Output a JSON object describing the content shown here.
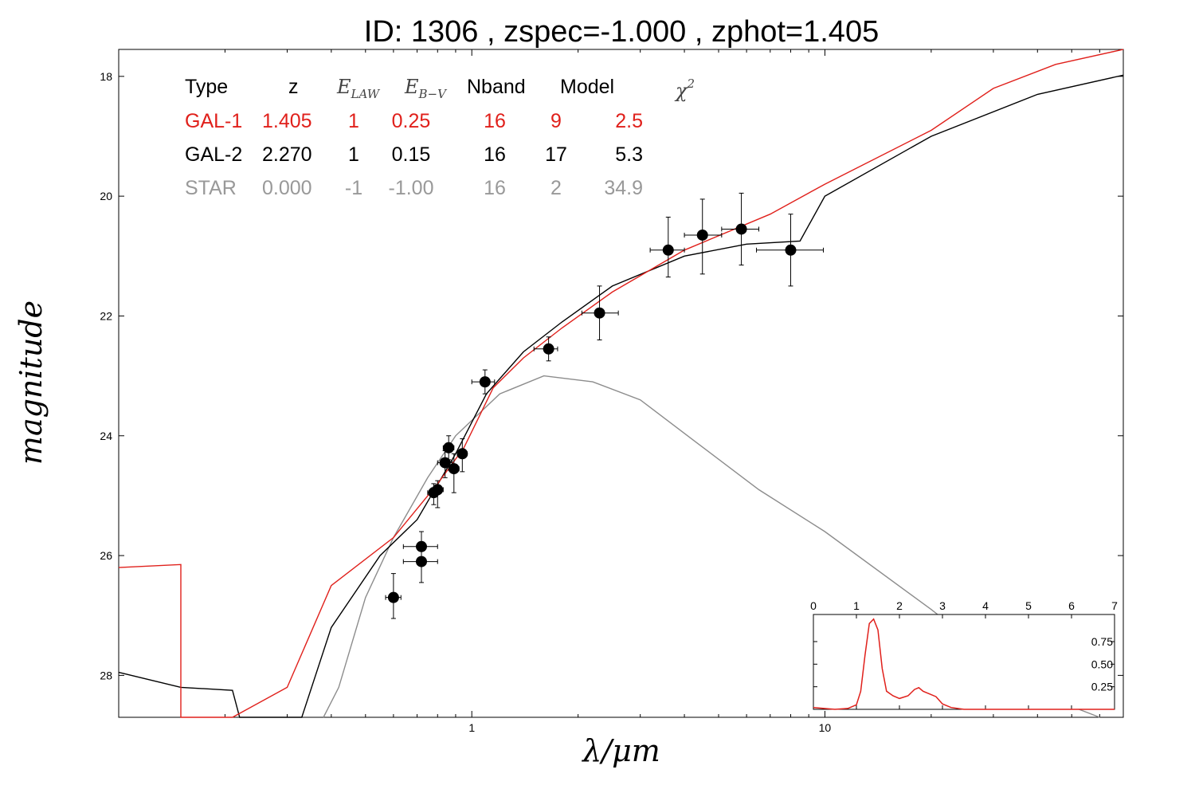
{
  "title": "ID:  1306  , zspec=-1.000 , zphot=1.405",
  "colors": {
    "gal1": "#e0201b",
    "gal2": "#000000",
    "star": "#8c8c8c",
    "points": "#000000"
  },
  "table": {
    "headers": [
      "Type",
      "z",
      "E",
      "LAW",
      "E",
      "B−V",
      "Nband",
      "Model",
      "χ",
      "2"
    ],
    "rows": [
      {
        "color": "#e0201b",
        "cells": [
          "GAL-1",
          "1.405",
          "1",
          "0.25",
          "16",
          "9",
          "2.5"
        ]
      },
      {
        "color": "#000000",
        "cells": [
          "GAL-2",
          "2.270",
          "1",
          "0.15",
          "16",
          "17",
          "5.3"
        ]
      },
      {
        "color": "#999999",
        "cells": [
          "STAR",
          "0.000",
          "-1",
          "-1.00",
          "16",
          "2",
          "34.9"
        ]
      }
    ]
  },
  "chart_data": [
    {
      "type": "line",
      "xlabel": "λ/μm",
      "ylabel": "magnitude",
      "xscale": "log",
      "xlim": [
        0.1,
        70
      ],
      "ylim": [
        28.7,
        17.55
      ],
      "yinverted": true,
      "xticks": [
        1,
        10
      ],
      "xtick_labels": [
        "1",
        "10"
      ],
      "yticks": [
        18,
        20,
        22,
        24,
        26,
        28
      ],
      "ytick_labels": [
        "18",
        "20",
        "22",
        "24",
        "26",
        "28"
      ],
      "series": [
        {
          "key": "gal1",
          "points": [
            [
              0.1,
              26.2
            ],
            [
              0.15,
              26.15
            ],
            [
              0.15,
              28.7
            ],
            [
              0.21,
              28.7
            ],
            [
              0.3,
              28.2
            ],
            [
              0.4,
              26.5
            ],
            [
              0.6,
              25.7
            ],
            [
              0.8,
              24.8
            ],
            [
              0.95,
              24.2
            ],
            [
              1.15,
              23.2
            ],
            [
              1.4,
              22.7
            ],
            [
              1.8,
              22.2
            ],
            [
              2.5,
              21.6
            ],
            [
              4,
              20.9
            ],
            [
              7,
              20.3
            ],
            [
              10,
              19.8
            ],
            [
              20,
              18.9
            ],
            [
              30,
              18.2
            ],
            [
              45,
              17.8
            ],
            [
              70,
              17.55
            ]
          ]
        },
        {
          "key": "gal2",
          "points": [
            [
              0.1,
              27.95
            ],
            [
              0.15,
              28.2
            ],
            [
              0.21,
              28.25
            ],
            [
              0.22,
              28.7
            ],
            [
              0.33,
              28.7
            ],
            [
              0.4,
              27.2
            ],
            [
              0.55,
              26.0
            ],
            [
              0.7,
              25.4
            ],
            [
              0.9,
              24.3
            ],
            [
              1.1,
              23.3
            ],
            [
              1.4,
              22.6
            ],
            [
              1.8,
              22.1
            ],
            [
              2.5,
              21.5
            ],
            [
              4,
              21.0
            ],
            [
              6,
              20.8
            ],
            [
              8.5,
              20.75
            ],
            [
              10,
              20.0
            ],
            [
              20,
              19.0
            ],
            [
              40,
              18.3
            ],
            [
              70,
              17.98
            ]
          ]
        },
        {
          "key": "star",
          "points": [
            [
              0.38,
              28.7
            ],
            [
              0.42,
              28.2
            ],
            [
              0.5,
              26.7
            ],
            [
              0.6,
              25.7
            ],
            [
              0.75,
              24.7
            ],
            [
              0.9,
              24.0
            ],
            [
              1.2,
              23.3
            ],
            [
              1.6,
              23.0
            ],
            [
              2.2,
              23.1
            ],
            [
              3,
              23.4
            ],
            [
              4.3,
              24.1
            ],
            [
              6.5,
              24.9
            ],
            [
              10,
              25.6
            ],
            [
              20,
              26.9
            ],
            [
              40,
              28.3
            ],
            [
              60,
              28.7
            ]
          ]
        }
      ],
      "photometry": [
        {
          "x": 0.6,
          "y": 26.7,
          "xerr": [
            0.57,
            0.63
          ],
          "yerr": [
            26.3,
            27.05
          ]
        },
        {
          "x": 0.72,
          "y": 25.85,
          "xerr": [
            0.64,
            0.8
          ],
          "yerr": [
            25.6,
            26.1
          ]
        },
        {
          "x": 0.72,
          "y": 26.1,
          "xerr": [
            0.64,
            0.8
          ],
          "yerr": [
            25.85,
            26.45
          ]
        },
        {
          "x": 0.78,
          "y": 24.95,
          "xerr": [
            0.75,
            0.81
          ],
          "yerr": [
            24.8,
            25.15
          ]
        },
        {
          "x": 0.8,
          "y": 24.9,
          "xerr": [
            0.77,
            0.83
          ],
          "yerr": [
            24.75,
            25.2
          ]
        },
        {
          "x": 0.84,
          "y": 24.45,
          "xerr": [
            0.8,
            0.88
          ],
          "yerr": [
            24.25,
            24.7
          ]
        },
        {
          "x": 0.86,
          "y": 24.2,
          "xerr": [
            0.83,
            0.89
          ],
          "yerr": [
            24.0,
            24.4
          ]
        },
        {
          "x": 0.89,
          "y": 24.55,
          "xerr": [
            0.86,
            0.92
          ],
          "yerr": [
            24.3,
            24.95
          ]
        },
        {
          "x": 0.94,
          "y": 24.3,
          "xerr": [
            0.91,
            0.97
          ],
          "yerr": [
            24.05,
            24.6
          ]
        },
        {
          "x": 1.09,
          "y": 23.1,
          "xerr": [
            1.0,
            1.16
          ],
          "yerr": [
            22.9,
            23.3
          ]
        },
        {
          "x": 1.65,
          "y": 22.55,
          "xerr": [
            1.5,
            1.75
          ],
          "yerr": [
            22.35,
            22.75
          ]
        },
        {
          "x": 2.3,
          "y": 21.95,
          "xerr": [
            2.05,
            2.6
          ],
          "yerr": [
            21.5,
            22.4
          ]
        },
        {
          "x": 3.6,
          "y": 20.9,
          "xerr": [
            3.2,
            4.0
          ],
          "yerr": [
            20.35,
            21.35
          ]
        },
        {
          "x": 4.5,
          "y": 20.65,
          "xerr": [
            4.0,
            5.1
          ],
          "yerr": [
            20.05,
            21.3
          ]
        },
        {
          "x": 5.8,
          "y": 20.55,
          "xerr": [
            5.1,
            6.5
          ],
          "yerr": [
            19.95,
            21.15
          ]
        },
        {
          "x": 8.0,
          "y": 20.9,
          "xerr": [
            6.4,
            9.9
          ],
          "yerr": [
            20.3,
            21.5
          ]
        }
      ]
    },
    {
      "type": "line",
      "role": "inset",
      "xlim": [
        0,
        7
      ],
      "ylim": [
        0,
        1.05
      ],
      "xticks": [
        0,
        1,
        2,
        3,
        4,
        5,
        6,
        7
      ],
      "xtick_labels": [
        "0",
        "1",
        "2",
        "3",
        "4",
        "5",
        "6",
        "7"
      ],
      "yticks": [
        0.25,
        0.5,
        0.75
      ],
      "ytick_labels": [
        "0.25",
        "0.50",
        "0.75"
      ],
      "series": [
        {
          "key": "gal1",
          "points": [
            [
              0,
              0.02
            ],
            [
              0.5,
              0.0
            ],
            [
              0.8,
              0.01
            ],
            [
              1.0,
              0.05
            ],
            [
              1.1,
              0.2
            ],
            [
              1.2,
              0.6
            ],
            [
              1.3,
              0.95
            ],
            [
              1.4,
              1.0
            ],
            [
              1.5,
              0.88
            ],
            [
              1.6,
              0.45
            ],
            [
              1.7,
              0.2
            ],
            [
              1.85,
              0.15
            ],
            [
              2.0,
              0.12
            ],
            [
              2.2,
              0.15
            ],
            [
              2.35,
              0.22
            ],
            [
              2.45,
              0.24
            ],
            [
              2.55,
              0.2
            ],
            [
              2.7,
              0.17
            ],
            [
              2.85,
              0.14
            ],
            [
              3.0,
              0.06
            ],
            [
              3.2,
              0.02
            ],
            [
              3.5,
              0.0
            ],
            [
              7,
              0.0
            ]
          ]
        }
      ]
    }
  ]
}
